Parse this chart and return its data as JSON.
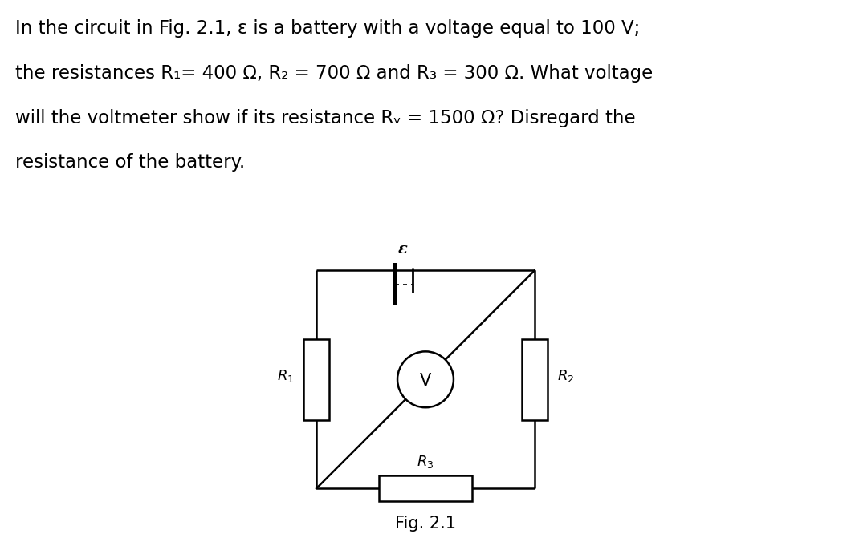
{
  "text_lines": [
    "In the circuit in Fig. 2.1, ε is a battery with a voltage equal to 100 V;",
    "the resistances R₁= 400 Ω, R₂ = 700 Ω and R₃ = 300 Ω. What voltage",
    "will the voltmeter show if its resistance Rᵥ = 1500 Ω? Disregard the",
    "resistance of the battery."
  ],
  "fig_label": "Fig. 2.1",
  "background_color": "#ffffff",
  "text_color": "#000000",
  "circuit_color": "#000000",
  "circuit_lw": 1.8,
  "text_fontsize": 16.5,
  "fig_label_fontsize": 15,
  "label_fontsize": 13
}
